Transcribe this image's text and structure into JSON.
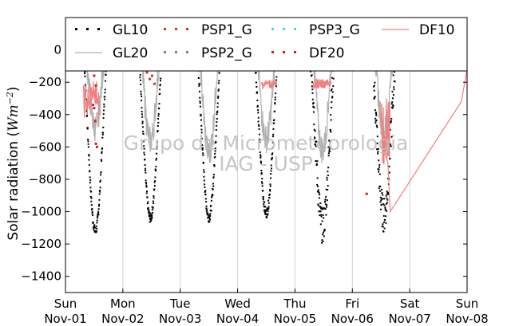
{
  "chart_data": {
    "type": "scatter",
    "ylabel": "Solar radiation ($Wm^{-2}$)",
    "ylabel_text": "Solar radiation (",
    "ylabel_unit_base": "Wm",
    "ylabel_unit_exp": "−2",
    "ylabel_close": ")",
    "ylim": [
      -1500,
      200
    ],
    "yticks": [
      0,
      -200,
      -400,
      -600,
      -800,
      -1000,
      -1200,
      -1400
    ],
    "xlim": [
      0,
      7
    ],
    "xticks": [
      {
        "x": 0,
        "day": "Sun",
        "date": "Nov-01"
      },
      {
        "x": 1,
        "day": "Mon",
        "date": "Nov-02"
      },
      {
        "x": 2,
        "day": "Tue",
        "date": "Nov-03"
      },
      {
        "x": 3,
        "day": "Wed",
        "date": "Nov-04"
      },
      {
        "x": 4,
        "day": "Thu",
        "date": "Nov-05"
      },
      {
        "x": 5,
        "day": "Fri",
        "date": "Nov-06"
      },
      {
        "x": 6,
        "day": "Sat",
        "date": "Nov-07"
      },
      {
        "x": 7,
        "day": "Sun",
        "date": "Nov-08"
      }
    ],
    "grid": "vertical",
    "legend_position": "top",
    "watermark": [
      "Grupo de Micrometeorologia",
      "IAG - USP"
    ],
    "series": [
      {
        "name": "GL10",
        "style": "dots",
        "color": "#000000",
        "peaks": [
          -1120,
          -1040,
          -1035,
          -1010,
          -1090,
          -1020
        ],
        "peak_times": [
          0.52,
          1.48,
          2.5,
          3.5,
          4.48,
          5.55
        ]
      },
      {
        "name": "GL20",
        "style": "line",
        "color": "#b0b0b0",
        "peaks": [
          -480,
          -560,
          -640,
          -550,
          -620,
          -500
        ],
        "peak_times": [
          0.52,
          1.48,
          2.5,
          3.5,
          4.48,
          5.55
        ]
      },
      {
        "name": "PSP1_G",
        "style": "dots",
        "color": "#c0392b",
        "points": [
          [
            1.42,
            -140
          ],
          [
            1.47,
            -180
          ],
          [
            1.51,
            -160
          ],
          [
            1.55,
            -210
          ]
        ]
      },
      {
        "name": "PSP2_G",
        "style": "dots",
        "color": "#808080",
        "points": []
      },
      {
        "name": "PSP3_G",
        "style": "dots",
        "color": "#40e0d0",
        "points": []
      },
      {
        "name": "DF20",
        "style": "dots",
        "color": "#e8141e",
        "points": [
          [
            0.48,
            -340
          ],
          [
            0.5,
            -360
          ],
          [
            0.52,
            -440
          ],
          [
            0.53,
            -580
          ],
          [
            0.55,
            -600
          ],
          [
            0.5,
            -160
          ],
          [
            0.53,
            -220
          ],
          [
            5.25,
            -890
          ]
        ]
      },
      {
        "name": "DF10",
        "style": "line",
        "color": "#f08080",
        "points": [
          [
            5.55,
            -620
          ],
          [
            5.62,
            -700
          ],
          [
            5.66,
            -1000
          ],
          [
            6.9,
            -320
          ],
          [
            7.0,
            -120
          ]
        ]
      }
    ]
  }
}
